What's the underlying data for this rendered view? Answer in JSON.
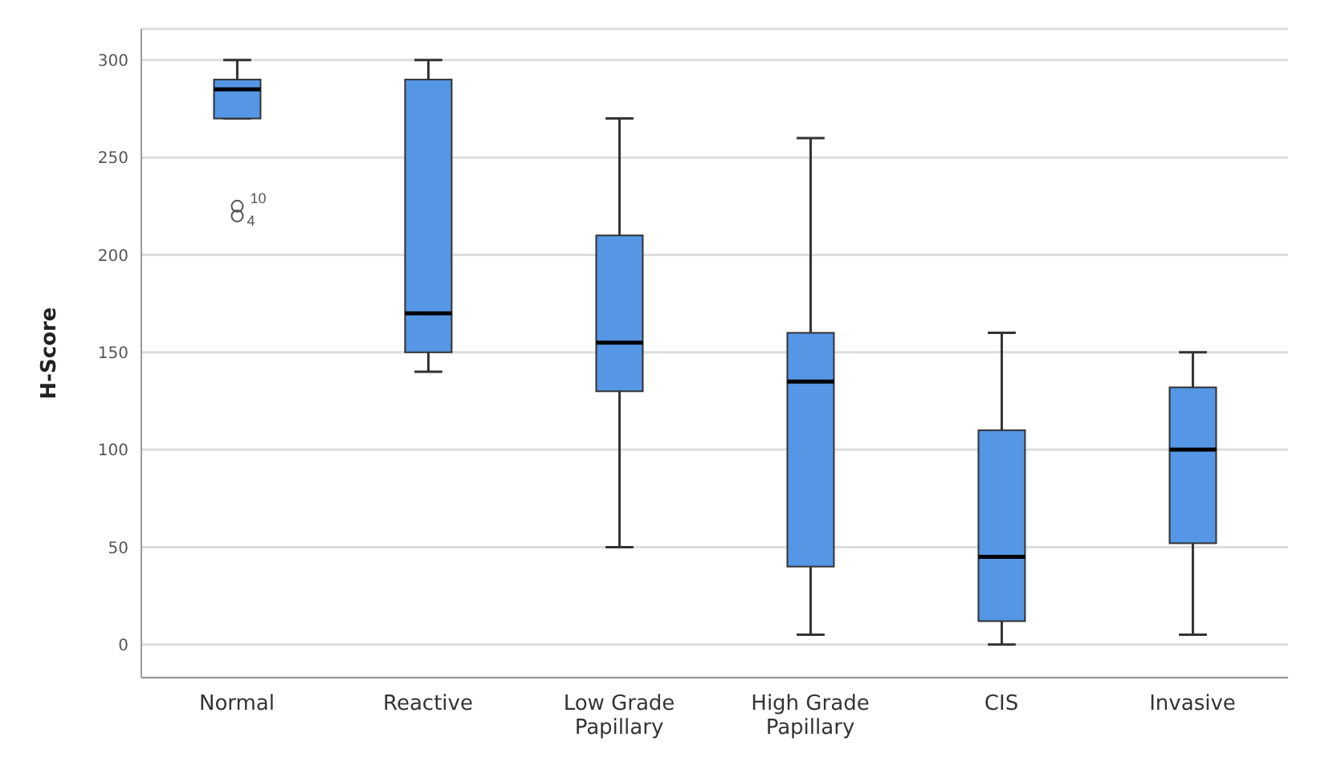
{
  "chart_data": {
    "type": "box",
    "ylabel": "H-Score",
    "categories": [
      "Normal",
      "Reactive",
      "Low Grade Papillary",
      "High Grade Papillary",
      "CIS",
      "Invasive"
    ],
    "boxes": [
      {
        "low": 270,
        "q1": 270,
        "median": 285,
        "q3": 290,
        "high": 300,
        "outliers": [
          225,
          220
        ]
      },
      {
        "low": 140,
        "q1": 150,
        "median": 170,
        "q3": 290,
        "high": 300
      },
      {
        "low": 50,
        "q1": 130,
        "median": 155,
        "q3": 210,
        "high": 270
      },
      {
        "low": 5,
        "q1": 40,
        "median": 135,
        "q3": 160,
        "high": 260
      },
      {
        "low": 0,
        "q1": 12,
        "median": 45,
        "q3": 110,
        "high": 160
      },
      {
        "low": 5,
        "q1": 52,
        "median": 100,
        "q3": 132,
        "high": 150
      }
    ],
    "color": "#5596e5",
    "ylim": [
      -17,
      316
    ],
    "yticks": [
      0,
      50,
      100,
      150,
      200,
      250,
      300
    ],
    "grid": "y",
    "annotations": [
      "10",
      "4"
    ]
  }
}
